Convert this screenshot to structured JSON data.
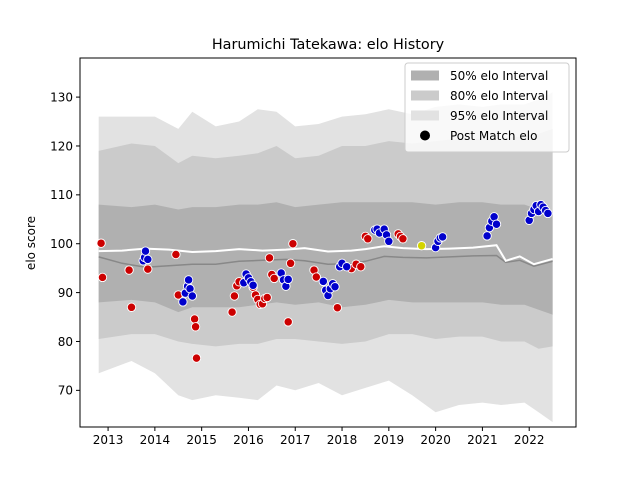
{
  "chart_data": {
    "type": "scatter",
    "title": "Harumichi Tatekawa: elo History",
    "xlabel": "",
    "ylabel": "elo score",
    "xlim": [
      2012.4,
      2023.0
    ],
    "ylim": [
      62.5,
      138.0
    ],
    "x_ticks": [
      2013,
      2014,
      2015,
      2016,
      2017,
      2018,
      2019,
      2020,
      2021,
      2022
    ],
    "y_ticks": [
      70,
      80,
      90,
      100,
      110,
      120,
      130
    ],
    "grid": false,
    "legend_position": "top-right",
    "legend": [
      {
        "label": "50% elo Interval",
        "kind": "patch",
        "color": "#b0b0b0"
      },
      {
        "label": "80% elo Interval",
        "kind": "patch",
        "color": "#cbcbcb"
      },
      {
        "label": "95% elo Interval",
        "kind": "patch",
        "color": "#e2e2e2"
      },
      {
        "label": "Post Match elo",
        "kind": "marker",
        "color": "#000000"
      }
    ],
    "colors": {
      "band95": "#e2e2e2",
      "band80": "#cbcbcb",
      "band50": "#b0b0b0",
      "mean_line": "#888888",
      "win": "#0000cc",
      "loss": "#cc0000",
      "draw": "#d4d400",
      "marker_edge": "#ffffff"
    },
    "bands": {
      "x": [
        2012.8,
        2013.5,
        2014.0,
        2014.5,
        2014.8,
        2015.3,
        2015.8,
        2016.2,
        2016.6,
        2017.0,
        2017.5,
        2018.0,
        2018.5,
        2019.0,
        2019.5,
        2020.0,
        2020.5,
        2021.0,
        2021.4,
        2021.9,
        2022.2,
        2022.5
      ],
      "lo95": [
        73.5,
        76,
        73.5,
        69,
        68,
        69,
        68.5,
        68,
        71,
        70,
        71.5,
        69,
        70.5,
        72,
        69,
        65.5,
        67,
        67.5,
        67,
        67.5,
        65.5,
        63.5
      ],
      "hi95": [
        126,
        126,
        126,
        123.5,
        127,
        124,
        125,
        127.5,
        127,
        124,
        124.5,
        126,
        126.5,
        127.5,
        126.5,
        128,
        128.5,
        128,
        128.5,
        128.5,
        129.5,
        131
      ],
      "lo80": [
        80.5,
        81.5,
        81.5,
        80,
        79.5,
        79,
        79.5,
        79.5,
        80.5,
        80.5,
        80,
        79.5,
        80,
        81.5,
        81.5,
        80.5,
        81,
        81,
        80,
        80,
        78.5,
        79
      ],
      "hi80": [
        119,
        120.5,
        120,
        116.5,
        118,
        117.5,
        118,
        118.5,
        120,
        117.5,
        118,
        120,
        120,
        121,
        120.5,
        121,
        121.5,
        121.5,
        121.5,
        122,
        122.5,
        123.5
      ],
      "lo50": [
        88,
        88.5,
        88,
        86,
        87,
        87,
        87,
        87.5,
        88,
        87.5,
        88,
        87,
        87.5,
        88.5,
        88,
        88,
        88,
        88,
        87.5,
        87.5,
        86.5,
        85.5
      ],
      "hi50": [
        108,
        107.5,
        108,
        107,
        107.5,
        107.5,
        108,
        108,
        108.5,
        107.5,
        108,
        108.5,
        108.5,
        108.5,
        108.5,
        108,
        108.5,
        108.5,
        108,
        108,
        107,
        106.5
      ]
    },
    "mean_line": {
      "x": [
        2012.8,
        2013.3,
        2013.8,
        2014.3,
        2014.8,
        2015.3,
        2015.8,
        2016.3,
        2016.8,
        2017.2,
        2017.7,
        2018.2,
        2018.5,
        2018.9,
        2019.3,
        2019.8,
        2020.3,
        2020.8,
        2021.3,
        2021.5,
        2021.8,
        2022.1,
        2022.5
      ],
      "y": [
        97.3,
        96,
        95.2,
        95.5,
        95.8,
        95.8,
        96.4,
        96.6,
        96.8,
        96.5,
        95.8,
        95.9,
        96.4,
        97.4,
        97.2,
        97.1,
        97.3,
        97.5,
        97.6,
        96.2,
        96.6,
        95.4,
        96.4
      ]
    },
    "median_line": {
      "x": [
        2012.8,
        2013.3,
        2013.8,
        2014.3,
        2014.8,
        2015.3,
        2015.8,
        2016.3,
        2016.8,
        2017.2,
        2017.7,
        2018.2,
        2018.5,
        2018.9,
        2019.3,
        2019.8,
        2020.3,
        2020.8,
        2021.3,
        2021.5,
        2021.8,
        2022.1,
        2022.5
      ],
      "y": [
        98.5,
        98.6,
        99,
        98.8,
        98.3,
        98.5,
        98.9,
        98.6,
        98.8,
        99.1,
        98.4,
        98.6,
        98.9,
        99.5,
        99.1,
        98.9,
        99,
        99.2,
        99.7,
        96.5,
        97.4,
        95.8,
        96.9
      ]
    },
    "series": [
      {
        "result": "loss",
        "x": [
          2012.85,
          2012.88,
          2013.45,
          2013.5,
          2013.85,
          2014.45,
          2014.5,
          2014.85,
          2014.87,
          2014.89,
          2015.65,
          2015.7,
          2015.75,
          2015.8,
          2016.1,
          2016.15,
          2016.2,
          2016.25,
          2016.3,
          2016.35,
          2016.4,
          2016.45,
          2016.5,
          2016.55,
          2016.85,
          2016.9,
          2016.95,
          2017.4,
          2017.45,
          2017.9,
          2018.2,
          2018.3,
          2018.4,
          2018.5,
          2018.55,
          2019.2,
          2019.25,
          2019.3
        ],
        "y": [
          100.1,
          93.1,
          94.6,
          87,
          94.8,
          97.8,
          89.5,
          84.6,
          83,
          76.6,
          86,
          89.3,
          91.4,
          92.2,
          91.1,
          89.5,
          88.6,
          87.6,
          87.7,
          88.8,
          89,
          97.1,
          93.7,
          92.9,
          84,
          96,
          100,
          94.6,
          93.2,
          86.9,
          94.9,
          95.8,
          95.3,
          101.5,
          101,
          102,
          101.5,
          101
        ]
      },
      {
        "result": "win",
        "x": [
          2013.75,
          2013.78,
          2013.8,
          2013.85,
          2014.6,
          2014.65,
          2014.7,
          2014.72,
          2014.75,
          2014.8,
          2015.9,
          2015.95,
          2016.0,
          2016.05,
          2016.1,
          2016.7,
          2016.75,
          2016.8,
          2016.85,
          2017.6,
          2017.65,
          2017.7,
          2017.75,
          2017.8,
          2017.85,
          2017.95,
          2018.0,
          2018.1,
          2018.7,
          2018.75,
          2018.8,
          2018.9,
          2018.95,
          2019.0,
          2020.0,
          2020.05,
          2020.1,
          2020.15,
          2021.1,
          2021.15,
          2021.2,
          2021.25,
          2021.3,
          2022.0,
          2022.05,
          2022.1,
          2022.15,
          2022.2,
          2022.25,
          2022.3,
          2022.35,
          2022.4
        ],
        "y": [
          96.5,
          97.2,
          98.5,
          96.8,
          88.1,
          89.9,
          91.3,
          92.6,
          90.8,
          89.3,
          92,
          93.8,
          93,
          92.2,
          91.5,
          94,
          92.6,
          91.3,
          92.7,
          92.3,
          90.5,
          89.4,
          90.8,
          91.8,
          91.2,
          95.3,
          96,
          95.3,
          102.8,
          103,
          102.2,
          103,
          101.8,
          100.5,
          99.2,
          100.5,
          101.2,
          101.4,
          101.6,
          103.3,
          104.6,
          105.5,
          104,
          104.8,
          106.2,
          107,
          107.8,
          106.6,
          108,
          107.5,
          106.8,
          106.2
        ]
      },
      {
        "result": "draw",
        "x": [
          2019.7
        ],
        "y": [
          99.6
        ]
      }
    ]
  }
}
